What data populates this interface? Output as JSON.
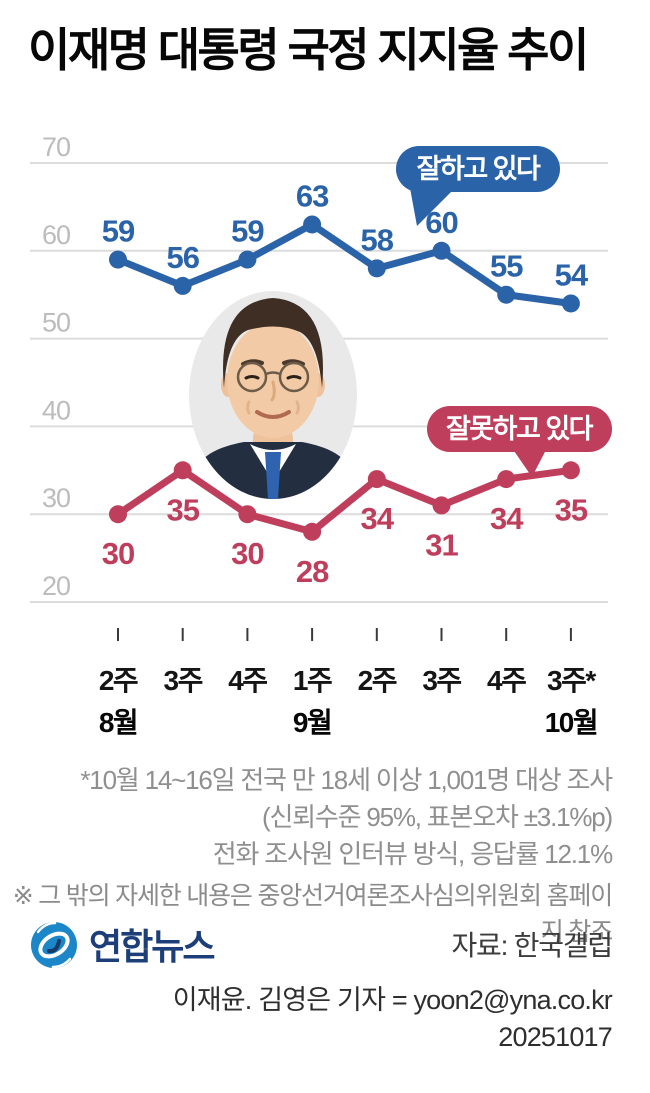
{
  "title": "이재명 대통령 국정 지지율 추이",
  "chart_data": {
    "type": "line",
    "categories": [
      "2주",
      "3주",
      "4주",
      "1주",
      "2주",
      "3주",
      "4주",
      "3주*"
    ],
    "month_labels": [
      {
        "index": 0,
        "label": "8월"
      },
      {
        "index": 3,
        "label": "9월"
      },
      {
        "index": 7,
        "label": "10월"
      }
    ],
    "series": [
      {
        "name": "잘하고 있다",
        "values": [
          59,
          56,
          59,
          63,
          58,
          60,
          55,
          54
        ],
        "color": "#2b63a8",
        "label_position": "above"
      },
      {
        "name": "잘못하고 있다",
        "values": [
          30,
          35,
          30,
          28,
          34,
          31,
          34,
          35
        ],
        "color": "#bf3e5c",
        "label_position": "below"
      }
    ],
    "ylim": [
      20,
      70
    ],
    "yticks": [
      70,
      60,
      50,
      40,
      30,
      20
    ],
    "grid": "horizontal",
    "legend_style": "speech-bubbles"
  },
  "footnotes": {
    "line1": "*10월 14~16일 전국 만 18세 이상 1,001명 대상 조사",
    "line2": "(신뢰수준 95%, 표본오차 ±3.1%p)",
    "line3": "전화 조사원 인터뷰 방식, 응답률 12.1%",
    "notice": "※ 그 밖의 자세한 내용은 중앙선거여론조사심의위원회 홈페이지 참조"
  },
  "footer": {
    "agency": "연합뉴스",
    "source": "자료: 한국갤럽",
    "credit": "이재윤. 김영은 기자 = yoon2@yna.co.kr",
    "date": "20251017"
  },
  "colors": {
    "approve": "#2b63a8",
    "disapprove": "#bf3e5c",
    "grid": "#dcdcdc",
    "axis_label": "#bcbcbc",
    "logo_blue": "#1b87c9",
    "logo_navy": "#1c3e79"
  }
}
